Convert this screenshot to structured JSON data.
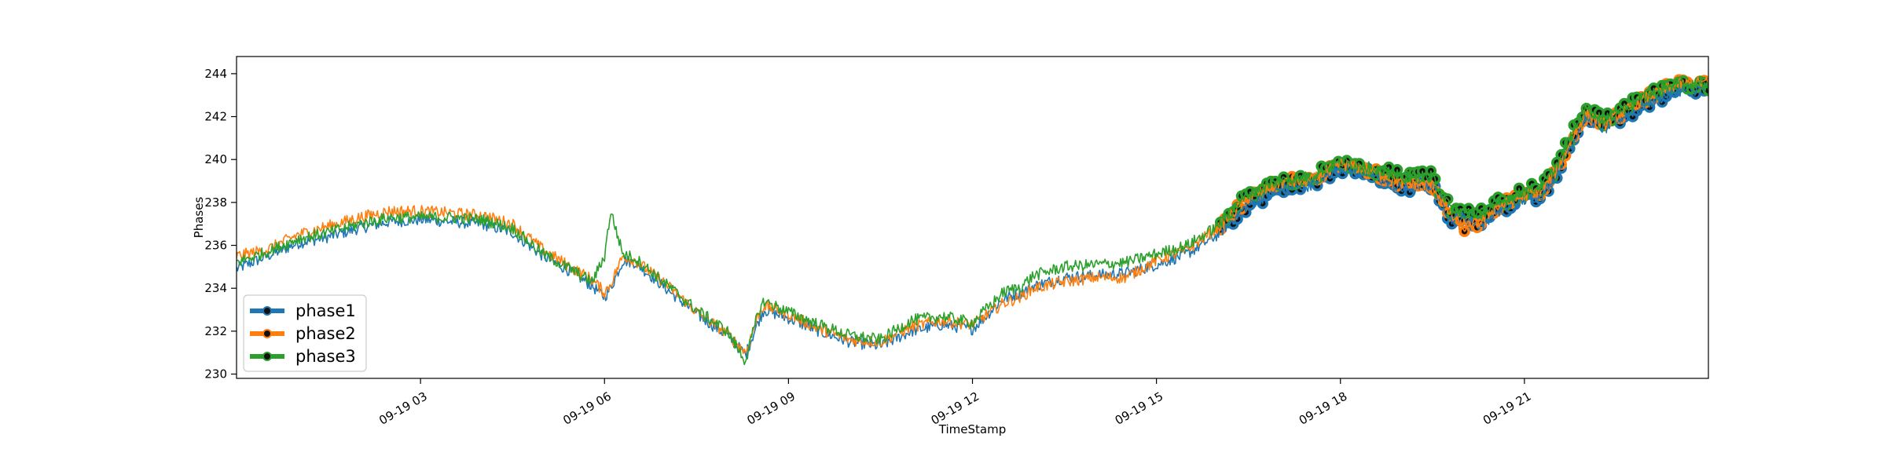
{
  "chart_data": {
    "type": "line",
    "title": "",
    "xlabel": "TimeStamp",
    "ylabel": "Phases",
    "x_domain_hours": [
      0,
      24
    ],
    "x_ticks": [
      {
        "hour": 3,
        "label": "09-19 03"
      },
      {
        "hour": 6,
        "label": "09-19 06"
      },
      {
        "hour": 9,
        "label": "09-19 09"
      },
      {
        "hour": 12,
        "label": "09-19 12"
      },
      {
        "hour": 15,
        "label": "09-19 15"
      },
      {
        "hour": 18,
        "label": "09-19 18"
      },
      {
        "hour": 21,
        "label": "09-19 21"
      }
    ],
    "ylim": [
      229.8,
      244.8
    ],
    "y_ticks": [
      230,
      232,
      234,
      236,
      238,
      240,
      242,
      244
    ],
    "grid": false,
    "legend_position": "lower-left",
    "marker_note": "markers appear only after about 16:00",
    "series": [
      {
        "name": "phase1",
        "color": "#1f77b4",
        "x": [
          0,
          0.5,
          1,
          1.5,
          2,
          2.5,
          3,
          3.5,
          4,
          4.5,
          5,
          5.5,
          5.8,
          6,
          6.1,
          6.3,
          6.5,
          7,
          7.5,
          8,
          8.3,
          8.5,
          8.6,
          9,
          9.5,
          10,
          10.5,
          11,
          11.5,
          12,
          12.5,
          12.8,
          13,
          13.5,
          14,
          14.5,
          15,
          15.5,
          16,
          16.5,
          17,
          17.5,
          18,
          18.5,
          19,
          19.5,
          19.8,
          20,
          20.3,
          20.5,
          21,
          21.3,
          21.5,
          21.8,
          22,
          22.3,
          22.5,
          23,
          23.5,
          24
        ],
        "y": [
          234.9,
          235.5,
          236.1,
          236.4,
          236.8,
          237.1,
          237.2,
          237.1,
          237.0,
          236.6,
          235.5,
          234.7,
          234.1,
          233.6,
          234.0,
          235.3,
          235.2,
          234.0,
          232.8,
          231.8,
          230.9,
          232.4,
          233.0,
          232.6,
          232.0,
          231.5,
          231.3,
          232.0,
          232.3,
          232.1,
          233.5,
          233.8,
          234.1,
          234.5,
          234.6,
          234.7,
          235.1,
          235.6,
          236.5,
          237.9,
          238.6,
          238.8,
          239.6,
          239.3,
          238.6,
          238.8,
          237.2,
          237.3,
          236.9,
          237.5,
          238.1,
          238.4,
          239.2,
          240.9,
          242.0,
          241.4,
          241.8,
          242.6,
          243.2,
          243.3
        ]
      },
      {
        "name": "phase2",
        "color": "#ff7f0e",
        "x": [
          0,
          0.5,
          1,
          1.5,
          2,
          2.5,
          3,
          3.5,
          4,
          4.5,
          5,
          5.5,
          5.8,
          6,
          6.1,
          6.3,
          6.5,
          7,
          7.5,
          8,
          8.3,
          8.5,
          8.6,
          9,
          9.5,
          10,
          10.5,
          11,
          11.5,
          12,
          12.5,
          12.8,
          13,
          13.5,
          14,
          14.5,
          15,
          15.5,
          16,
          16.5,
          17,
          17.5,
          18,
          18.5,
          19,
          19.5,
          19.8,
          20,
          20.3,
          20.5,
          21,
          21.3,
          21.5,
          21.8,
          22,
          22.3,
          22.5,
          23,
          23.5,
          24
        ],
        "y": [
          235.5,
          235.8,
          236.5,
          236.9,
          237.3,
          237.6,
          237.6,
          237.5,
          237.4,
          237.0,
          235.8,
          234.9,
          234.4,
          233.8,
          234.2,
          235.5,
          235.3,
          234.2,
          232.9,
          231.9,
          231.0,
          232.7,
          233.2,
          232.8,
          232.1,
          231.6,
          231.5,
          232.2,
          232.5,
          232.3,
          233.3,
          233.6,
          234.0,
          234.3,
          234.5,
          234.5,
          235.3,
          235.8,
          236.8,
          238.2,
          238.9,
          239.0,
          239.8,
          239.5,
          238.9,
          238.8,
          237.4,
          236.8,
          237.1,
          237.7,
          238.3,
          238.6,
          239.4,
          241.1,
          242.2,
          241.6,
          242.0,
          242.9,
          243.5,
          243.6
        ]
      },
      {
        "name": "phase3",
        "color": "#2ca02c",
        "x": [
          0,
          0.5,
          1,
          1.5,
          2,
          2.5,
          3,
          3.5,
          4,
          4.5,
          5,
          5.5,
          5.8,
          6,
          6.1,
          6.3,
          6.5,
          7,
          7.5,
          8,
          8.3,
          8.5,
          8.6,
          9,
          9.5,
          10,
          10.5,
          11,
          11.5,
          12,
          12.5,
          12.8,
          13,
          13.5,
          14,
          14.5,
          15,
          15.5,
          16,
          16.5,
          17,
          17.5,
          18,
          18.5,
          19,
          19.5,
          19.8,
          20,
          20.3,
          20.5,
          21,
          21.3,
          21.5,
          21.8,
          22,
          22.3,
          22.5,
          23,
          23.5,
          24
        ],
        "y": [
          235.2,
          235.7,
          236.3,
          236.6,
          237.0,
          237.3,
          237.3,
          237.3,
          237.2,
          236.8,
          235.6,
          234.8,
          234.3,
          235.5,
          237.6,
          235.6,
          235.4,
          234.2,
          233.0,
          232.0,
          230.6,
          232.8,
          233.4,
          232.9,
          232.3,
          231.8,
          231.6,
          232.5,
          232.7,
          232.4,
          233.8,
          234.1,
          234.6,
          235.0,
          235.1,
          235.2,
          235.6,
          236.0,
          236.9,
          238.4,
          239.0,
          239.2,
          239.9,
          239.6,
          239.2,
          239.2,
          237.7,
          237.6,
          237.5,
          237.9,
          238.5,
          238.8,
          239.6,
          241.3,
          242.4,
          241.8,
          242.2,
          243.0,
          243.5,
          243.4
        ]
      }
    ]
  }
}
